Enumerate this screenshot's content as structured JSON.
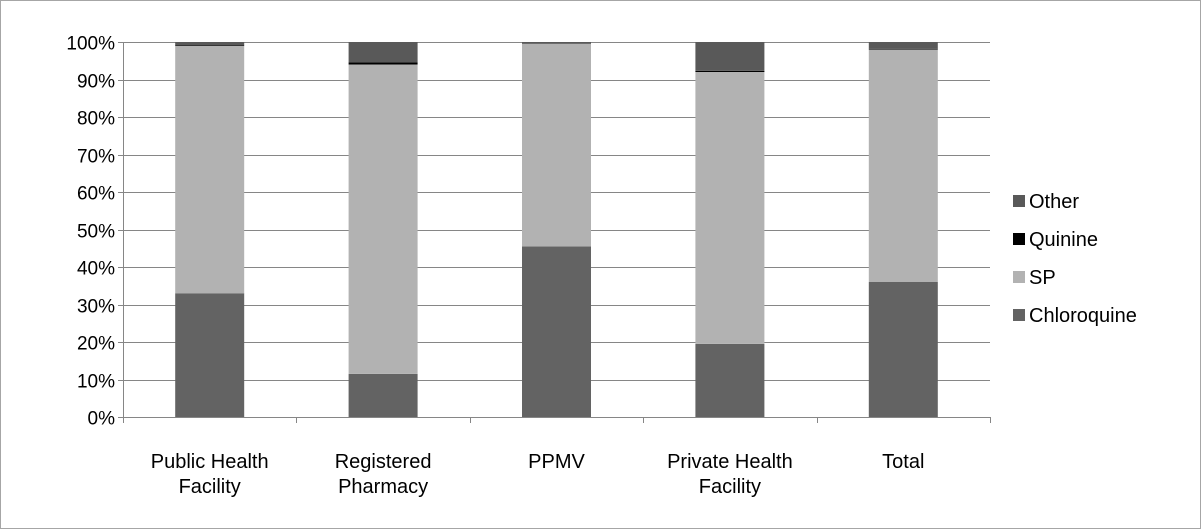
{
  "chart_data": {
    "type": "bar",
    "stacked": true,
    "percent_stacked": true,
    "title": "",
    "xlabel": "",
    "ylabel": "",
    "ylim": [
      0,
      100
    ],
    "y_ticks": [
      "0%",
      "10%",
      "20%",
      "30%",
      "40%",
      "50%",
      "60%",
      "70%",
      "80%",
      "90%",
      "100%"
    ],
    "grid": true,
    "legend_position": "right",
    "categories": [
      [
        "Public Health",
        "Facility"
      ],
      [
        "Registered",
        "Pharmacy"
      ],
      [
        "PPMV"
      ],
      [
        "Private Health",
        "Facility"
      ],
      [
        "Total"
      ]
    ],
    "series": [
      {
        "name": "Chloroquine",
        "color": "#636363",
        "values": [
          33.0,
          11.5,
          45.5,
          19.5,
          36.0
        ]
      },
      {
        "name": "SP",
        "color": "#b2b2b2",
        "values": [
          66.0,
          82.5,
          54.0,
          72.5,
          62.0
        ]
      },
      {
        "name": "Quinine",
        "color": "#000000",
        "values": [
          0.2,
          0.6,
          0.0,
          0.3,
          0.2
        ]
      },
      {
        "name": "Other",
        "color": "#595959",
        "values": [
          0.8,
          5.4,
          0.5,
          7.7,
          1.8
        ]
      }
    ],
    "legend_order": [
      "Other",
      "Quinine",
      "SP",
      "Chloroquine"
    ]
  }
}
